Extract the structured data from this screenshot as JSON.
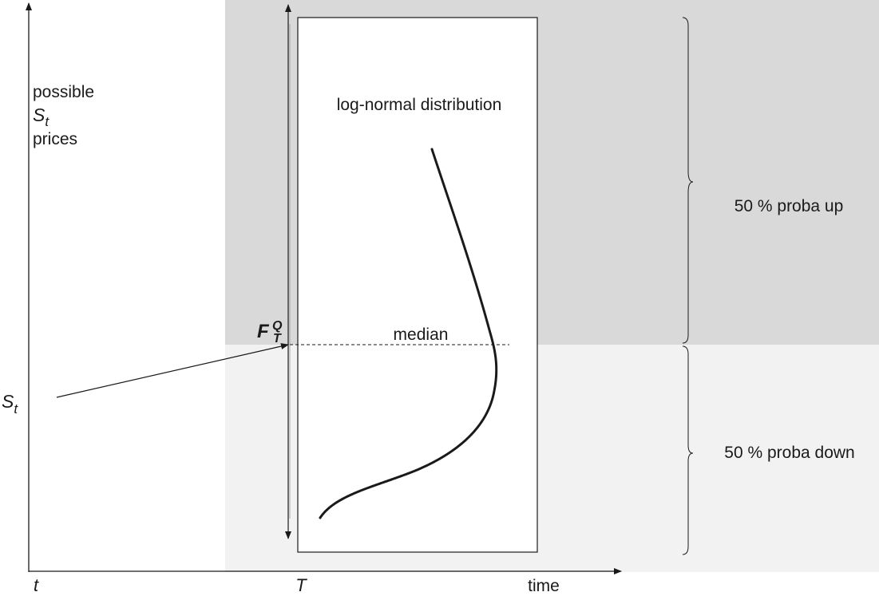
{
  "axes": {
    "y_label_line1": "possible",
    "y_label_var": "S",
    "y_label_sub": "t",
    "y_label_line3": "prices",
    "x_label": "time",
    "x_tick_start": "t",
    "x_tick_end": "T"
  },
  "current_price": {
    "var": "S",
    "sub": "t"
  },
  "forward": {
    "var": "F",
    "sup": "Q",
    "sub": "T"
  },
  "distribution_title": "log-normal distribution",
  "median_label": "median",
  "proba_up_label": "50 % proba up",
  "proba_down_label": "50 % proba down",
  "colors": {
    "upper_region": "#d9d9d9",
    "lower_region": "#f2f2f2",
    "line": "#1a1a1a"
  }
}
